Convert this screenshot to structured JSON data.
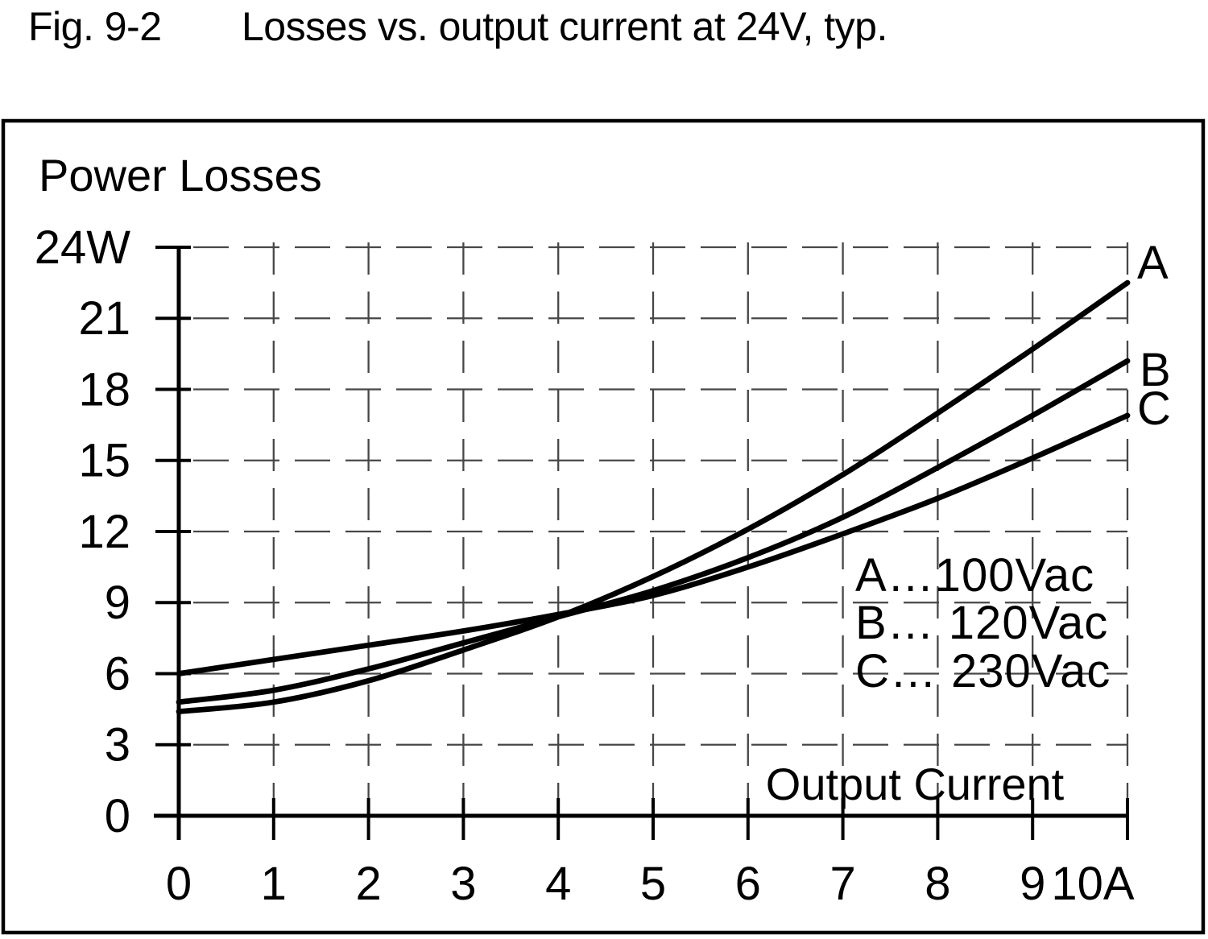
{
  "figure": {
    "fig_label": "Fig. 9-2"
  },
  "chart_data": {
    "type": "line",
    "title": "Losses vs. output current at 24V, typ.",
    "y_axis_title": "Power Losses",
    "x_axis_title": "Output Current",
    "x_unit": "A",
    "y_unit": "W",
    "xlim": [
      0,
      10
    ],
    "ylim": [
      0,
      24
    ],
    "grid": "dashed",
    "legend_position": "inside-right",
    "x": [
      0,
      1,
      2,
      3,
      4,
      5,
      6,
      7,
      8,
      9,
      10
    ],
    "x_tick_labels": [
      "0",
      "1",
      "2",
      "3",
      "4",
      "5",
      "6",
      "7",
      "8",
      "9",
      "10A"
    ],
    "y_ticks": [
      0,
      3,
      6,
      9,
      12,
      15,
      18,
      21,
      24
    ],
    "y_tick_labels": [
      "0",
      "3",
      "6",
      "9",
      "12",
      "15",
      "18",
      "21",
      "24W"
    ],
    "series": [
      {
        "name": "A",
        "legend": "A…100Vac",
        "values": [
          4.4,
          4.8,
          5.7,
          7.0,
          8.4,
          10.1,
          12.1,
          14.4,
          17.0,
          19.7,
          22.5
        ]
      },
      {
        "name": "B",
        "legend": "B… 120Vac",
        "values": [
          4.8,
          5.3,
          6.2,
          7.3,
          8.4,
          9.5,
          10.9,
          12.6,
          14.7,
          16.9,
          19.2
        ]
      },
      {
        "name": "C",
        "legend": "C… 230Vac",
        "values": [
          6.0,
          6.6,
          7.2,
          7.8,
          8.5,
          9.3,
          10.5,
          11.9,
          13.4,
          15.1,
          16.9
        ]
      }
    ],
    "colors": {
      "curve": "#000000",
      "axis": "#000000",
      "grid": "#474747",
      "text": "#000000",
      "frame": "#000000",
      "background": "#ffffff"
    }
  }
}
